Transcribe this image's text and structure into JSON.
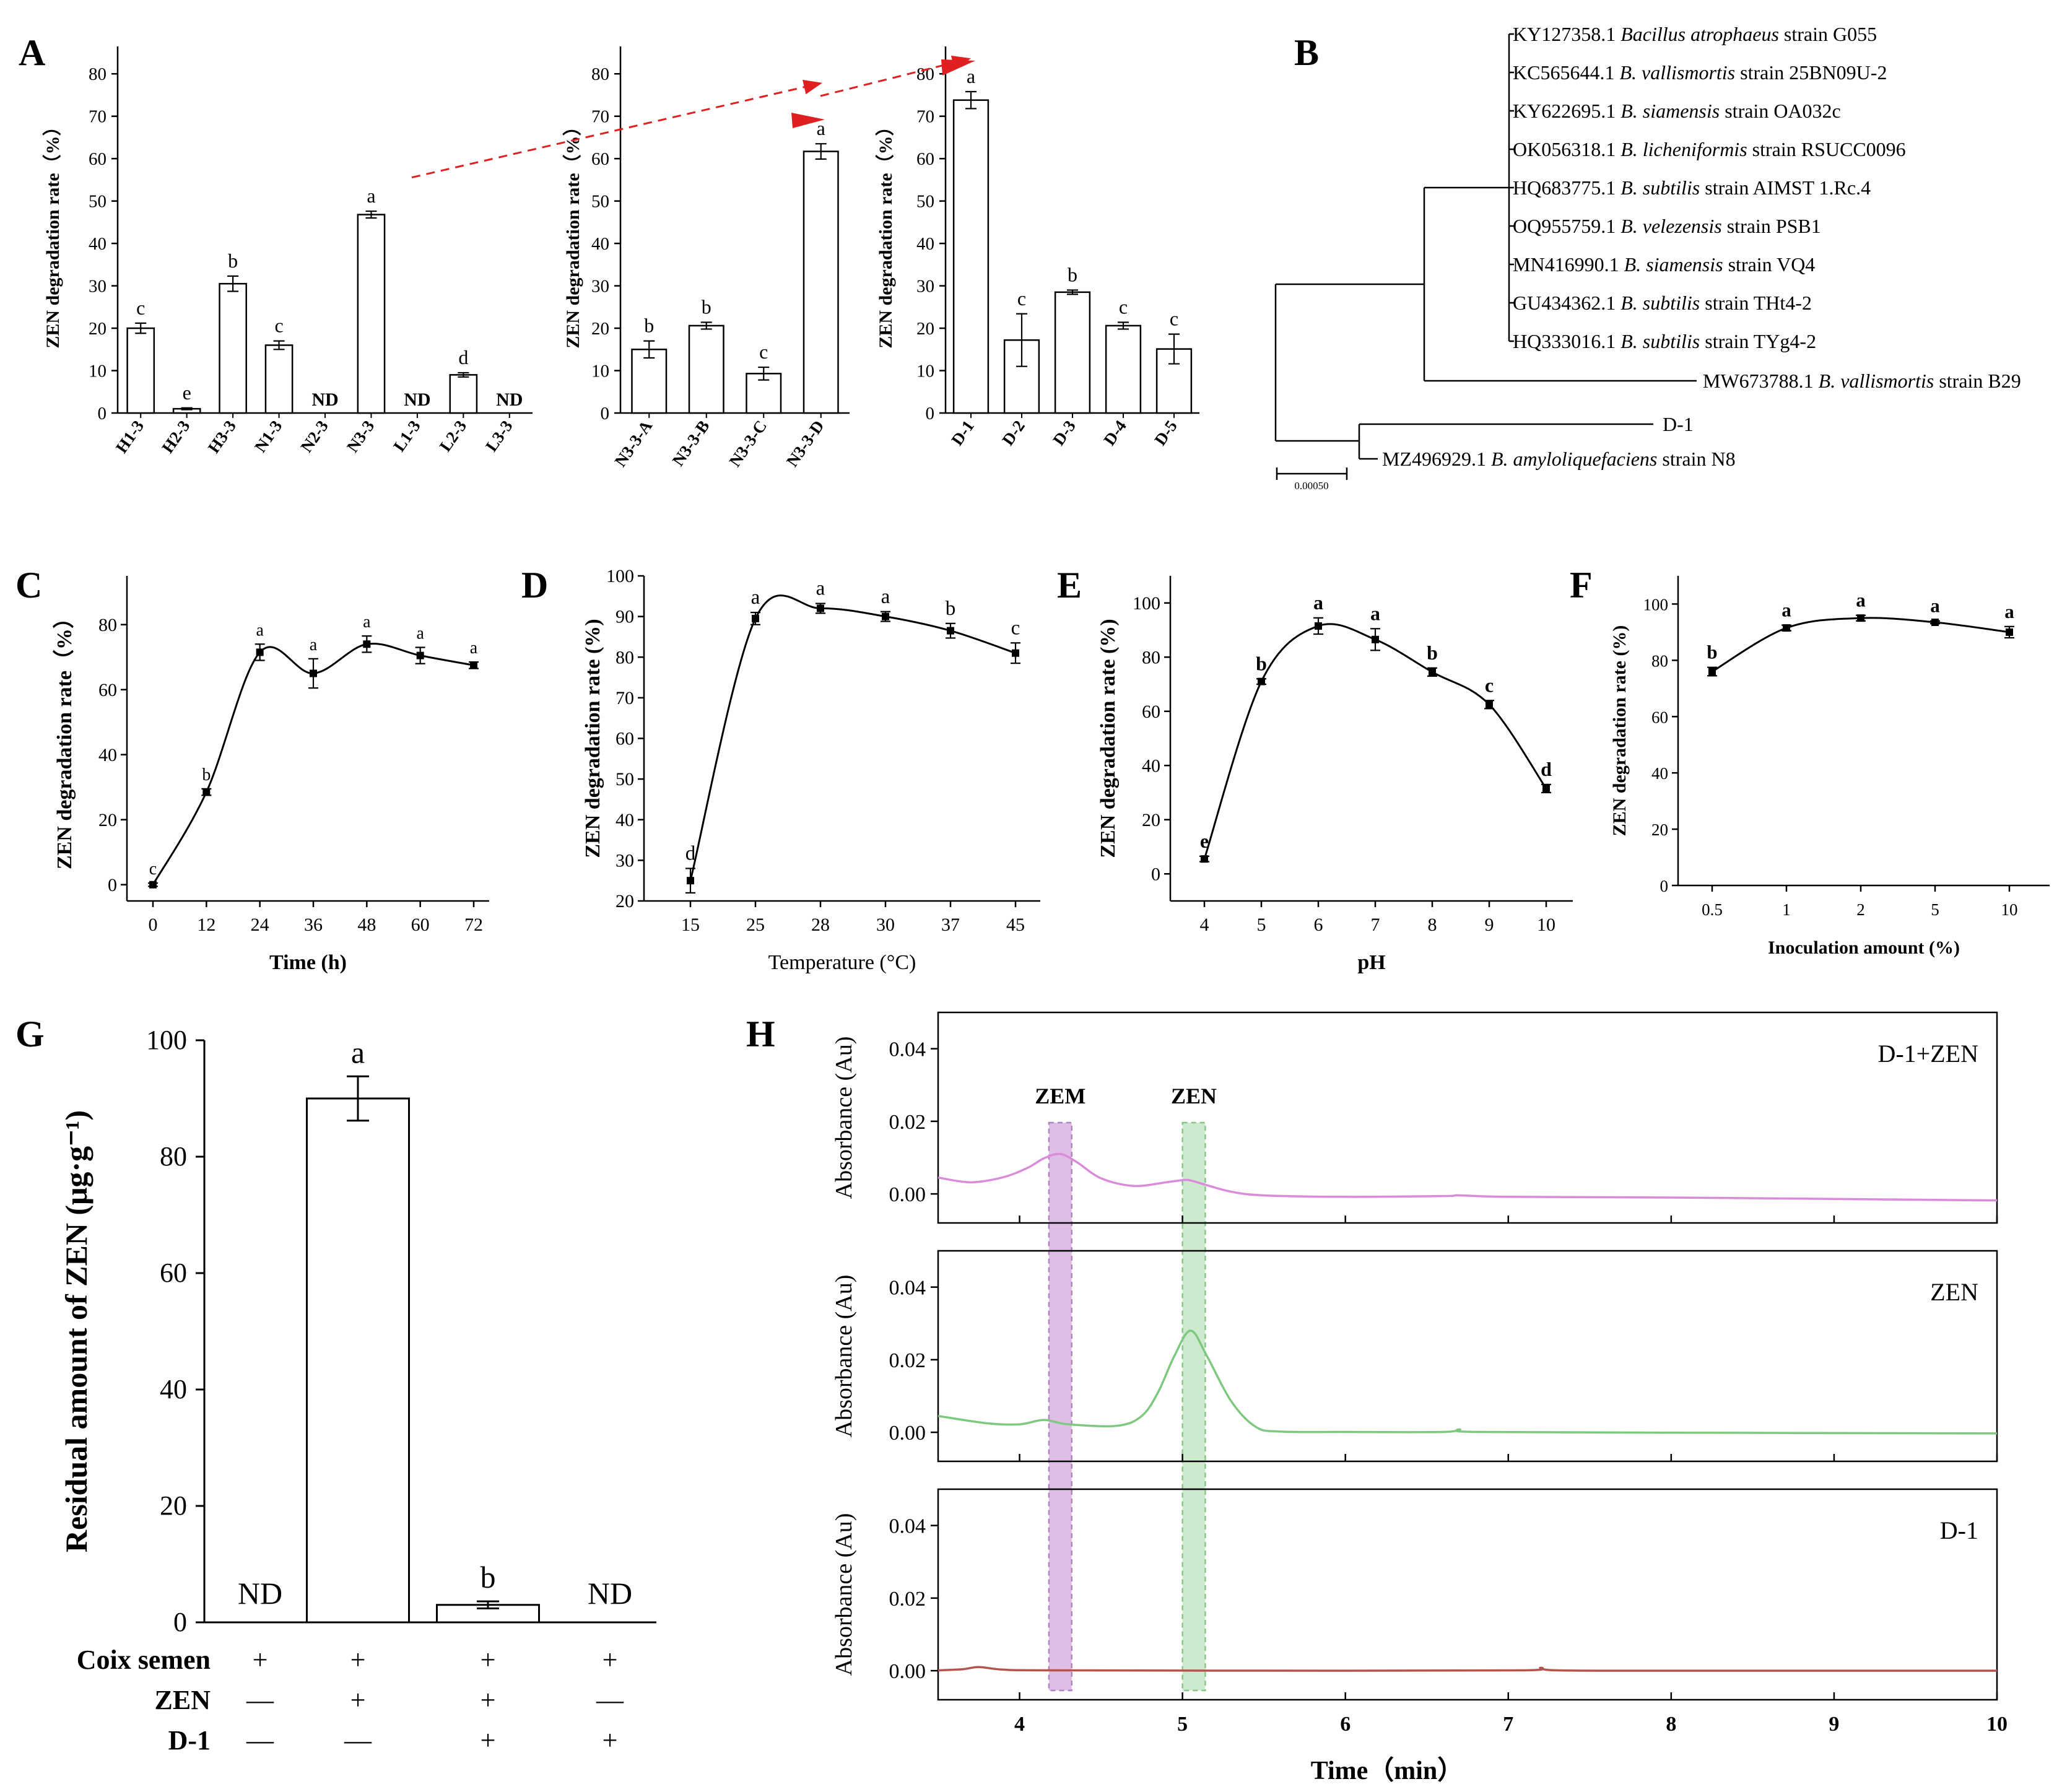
{
  "chart_data": [
    {
      "panel": "A",
      "id": "A1",
      "type": "bar",
      "ylabel": "ZEN degradation rate（%）",
      "ylim": [
        0,
        85
      ],
      "yticks": [
        0,
        10,
        20,
        30,
        40,
        50,
        60,
        70,
        80
      ],
      "categories": [
        "H1-3",
        "H2-3",
        "H3-3",
        "N1-3",
        "N2-3",
        "N3-3",
        "L1-3",
        "L2-3",
        "L3-3"
      ],
      "values": [
        20,
        1,
        30.5,
        16,
        null,
        46.8,
        null,
        9,
        null
      ],
      "errors": [
        1.2,
        0.2,
        1.8,
        1.0,
        0,
        0.8,
        0,
        0.5,
        0
      ],
      "letters": [
        "c",
        "e",
        "b",
        "c",
        "ND",
        "a",
        "ND",
        "d",
        "ND"
      ]
    },
    {
      "panel": "A",
      "id": "A2",
      "type": "bar",
      "ylabel": "ZEN degradation rate（%）",
      "ylim": [
        0,
        85
      ],
      "yticks": [
        0,
        10,
        20,
        30,
        40,
        50,
        60,
        70,
        80
      ],
      "categories": [
        "N3-3-A",
        "N3-3-B",
        "N3-3-C",
        "N3-3-D"
      ],
      "values": [
        15,
        20.6,
        9.3,
        61.7
      ],
      "errors": [
        2.0,
        0.8,
        1.5,
        1.8
      ],
      "letters": [
        "b",
        "b",
        "c",
        "a"
      ]
    },
    {
      "panel": "A",
      "id": "A3",
      "type": "bar",
      "ylabel": "ZEN degradation rate（%）",
      "ylim": [
        0,
        85
      ],
      "yticks": [
        0,
        10,
        20,
        30,
        40,
        50,
        60,
        70,
        80
      ],
      "categories": [
        "D-1",
        "D-2",
        "D-3",
        "D-4",
        "D-5"
      ],
      "values": [
        73.8,
        17.2,
        28.5,
        20.6,
        15.1
      ],
      "errors": [
        2.0,
        6.2,
        0.5,
        0.8,
        3.5
      ],
      "letters": [
        "a",
        "c",
        "b",
        "c",
        "c"
      ]
    },
    {
      "panel": "B",
      "id": "B",
      "type": "tree",
      "scale_label": "0.00050",
      "taxa": [
        {
          "acc": "KY127358.1",
          "sp": "Bacillus atrophaeus",
          "strain": "strain G055"
        },
        {
          "acc": "KC565644.1",
          "sp": "B. vallismortis",
          "strain": "strain 25BN09U-2"
        },
        {
          "acc": "KY622695.1",
          "sp": "B. siamensis",
          "strain": "strain OA032c"
        },
        {
          "acc": "OK056318.1",
          "sp": "B. licheniformis",
          "strain": "strain RSUCC0096"
        },
        {
          "acc": "HQ683775.1",
          "sp": "B. subtilis",
          "strain": "strain AIMST 1.Rc.4"
        },
        {
          "acc": "OQ955759.1",
          "sp": "B. velezensis",
          "strain": "strain PSB1"
        },
        {
          "acc": "MN416990.1",
          "sp": "B. siamensis",
          "strain": "strain VQ4"
        },
        {
          "acc": "GU434362.1",
          "sp": "B. subtilis",
          "strain": "strain THt4-2"
        },
        {
          "acc": "HQ333016.1",
          "sp": "B. subtilis",
          "strain": "strain TYg4-2"
        },
        {
          "acc": "MW673788.1",
          "sp": "B. vallismortis",
          "strain": "strain B29"
        },
        {
          "acc": "D-1",
          "sp": "",
          "strain": ""
        },
        {
          "acc": "MZ496929.1",
          "sp": "B. amyloliquefaciens",
          "strain": "strain N8"
        }
      ]
    },
    {
      "panel": "C",
      "id": "C",
      "type": "line",
      "xlabel": "Time (h)",
      "ylabel": "ZEN degradation rate（%）",
      "ylim": [
        -5,
        95
      ],
      "yticks": [
        0,
        20,
        40,
        60,
        80
      ],
      "categories": [
        "0",
        "12",
        "24",
        "36",
        "48",
        "60",
        "72"
      ],
      "values": [
        0,
        28.5,
        71.5,
        65,
        74,
        70.5,
        67.5
      ],
      "errors": [
        0.5,
        1,
        2.5,
        4.5,
        2.5,
        2.5,
        1
      ],
      "letters": [
        "c",
        "b",
        "a",
        "a",
        "a",
        "a",
        "a"
      ]
    },
    {
      "panel": "D",
      "id": "D",
      "type": "line",
      "xlabel": "Temperature (°C)",
      "ylabel": "ZEN degradation rate (%)",
      "ylim": [
        20,
        100
      ],
      "yticks": [
        20,
        30,
        40,
        50,
        60,
        70,
        80,
        90,
        100
      ],
      "categories": [
        "15",
        "25",
        "28",
        "30",
        "37",
        "45"
      ],
      "values": [
        25,
        89.5,
        92,
        90,
        86.5,
        81
      ],
      "errors": [
        3,
        1.5,
        1.2,
        1.2,
        1.8,
        2.5
      ],
      "letters": [
        "d",
        "a",
        "a",
        "a",
        "b",
        "c"
      ]
    },
    {
      "panel": "E",
      "id": "E",
      "type": "line",
      "xlabel": "pH",
      "ylabel": "ZEN degradation rate (%)",
      "ylim": [
        -10,
        110
      ],
      "yticks": [
        0,
        20,
        40,
        60,
        80,
        100
      ],
      "categories": [
        "4",
        "5",
        "6",
        "7",
        "8",
        "9",
        "10"
      ],
      "values": [
        5.5,
        71,
        91.5,
        86.5,
        74.5,
        62.5,
        31.5
      ],
      "errors": [
        1,
        1,
        3,
        4,
        1.5,
        1.5,
        1.5
      ],
      "letters": [
        "e",
        "b",
        "a",
        "a",
        "b",
        "c",
        "d"
      ]
    },
    {
      "panel": "F",
      "id": "F",
      "type": "line",
      "xlabel": "Inoculation amount (%)",
      "ylabel": "ZEN degradation rate (%)",
      "ylim": [
        0,
        110
      ],
      "yticks": [
        0,
        20,
        40,
        60,
        80,
        100
      ],
      "categories": [
        "0.5",
        "1",
        "2",
        "5",
        "10"
      ],
      "values": [
        76,
        91.5,
        95,
        93.5,
        90
      ],
      "errors": [
        1.5,
        1,
        1,
        0.5,
        2
      ],
      "letters": [
        "b",
        "a",
        "a",
        "a",
        "a"
      ]
    },
    {
      "panel": "G",
      "id": "G",
      "type": "bar",
      "ylabel": "Residual amount of ZEN (μg·g⁻¹)",
      "ylim": [
        0,
        100
      ],
      "yticks": [
        0,
        20,
        40,
        60,
        80,
        100
      ],
      "values": [
        null,
        90,
        3,
        null
      ],
      "errors": [
        0,
        3.8,
        0.6,
        0
      ],
      "letters": [
        "ND",
        "a",
        "b",
        "ND"
      ],
      "factor_rows": [
        {
          "label": "Coix semen",
          "signs": [
            "+",
            "+",
            "+",
            "+"
          ]
        },
        {
          "label": "ZEN",
          "signs": [
            "—",
            "+",
            "+",
            "—"
          ]
        },
        {
          "label": "D-1",
          "signs": [
            "—",
            "—",
            "+",
            "+"
          ]
        }
      ]
    },
    {
      "panel": "H",
      "id": "H",
      "type": "line",
      "xlabel": "Time（min）",
      "ylabel": "Absorbance (Au)",
      "xlim": [
        3.5,
        10
      ],
      "xticks": [
        4,
        5,
        6,
        7,
        8,
        9,
        10
      ],
      "ylim": [
        -0.008,
        0.05
      ],
      "yticks": [
        "0.00",
        "0.02",
        "0.04"
      ],
      "highlight_labels": [
        "ZEM",
        "ZEN"
      ],
      "highlight_ranges": [
        [
          4.18,
          4.32
        ],
        [
          5.0,
          5.14
        ]
      ],
      "series": [
        {
          "name": "D-1+ZEN",
          "color": "#d98cd9",
          "x": [
            3.5,
            3.7,
            3.9,
            4.05,
            4.15,
            4.25,
            4.35,
            4.5,
            4.7,
            4.9,
            5.0,
            5.05,
            5.15,
            5.3,
            5.5,
            6.0,
            6.6,
            6.7,
            7.0,
            8.0,
            9.0,
            10.0
          ],
          "y": [
            0.0045,
            0.0032,
            0.0046,
            0.0072,
            0.0098,
            0.011,
            0.0088,
            0.0043,
            0.0022,
            0.0032,
            0.0038,
            0.0037,
            0.0024,
            0.0006,
            -0.0004,
            -0.0008,
            -0.0006,
            -0.0004,
            -0.0008,
            -0.001,
            -0.0014,
            -0.0018
          ]
        },
        {
          "name": "ZEN",
          "color": "#7fc87f",
          "x": [
            3.5,
            3.8,
            4.0,
            4.15,
            4.3,
            4.6,
            4.75,
            4.85,
            4.95,
            5.05,
            5.15,
            5.3,
            5.45,
            5.6,
            6.0,
            6.6,
            6.7,
            6.8,
            8.0,
            10.0
          ],
          "y": [
            0.0045,
            0.0025,
            0.0022,
            0.0034,
            0.0022,
            0.0018,
            0.0045,
            0.011,
            0.021,
            0.028,
            0.021,
            0.0085,
            0.0015,
            0.0002,
            0.0001,
            0.0001,
            0.0008,
            0.0001,
            -0.0001,
            -0.0003
          ]
        },
        {
          "name": "D-1",
          "color": "#b5544f",
          "x": [
            3.5,
            3.65,
            3.75,
            3.9,
            4.2,
            6.0,
            7.1,
            7.2,
            7.3,
            8.0,
            10.0
          ],
          "y": [
            0.0001,
            0.0004,
            0.001,
            0.0003,
            0.0001,
            0.0,
            0.0001,
            0.0008,
            0.0001,
            0.0,
            0.0
          ]
        }
      ]
    }
  ]
}
